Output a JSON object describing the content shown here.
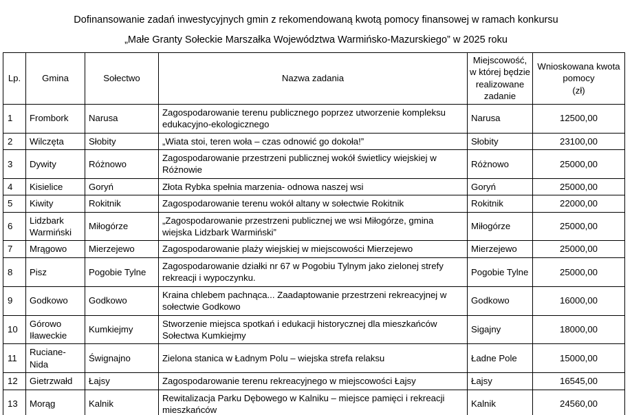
{
  "title": {
    "line1": "Dofinansowanie zadań inwestycyjnych gmin z rekomendowaną kwotą pomocy finansowej w ramach konkursu",
    "line2": "„Małe Granty Sołeckie Marszałka Województwa Warmińsko-Mazurskiego” w 2025 roku"
  },
  "table": {
    "headers": [
      "Lp.",
      "Gmina",
      "Sołectwo",
      "Nazwa zadania",
      "Miejscowość,\nw której będzie\nrealizowane\nzadanie",
      "Wnioskowana kwota\npomocy\n(zł)"
    ],
    "rows": [
      [
        "1",
        "Frombork",
        "Narusa",
        "Zagospodarowanie terenu publicznego poprzez utworzenie kompleksu edukacyjno-ekologicznego",
        "Narusa",
        "12500,00"
      ],
      [
        "2",
        "Wilczęta",
        "Słobity",
        "„Wiata stoi, teren woła – czas odnowić go dokoła!”",
        "Słobity",
        "23100,00"
      ],
      [
        "3",
        "Dywity",
        "Różnowo",
        "Zagospodarowanie przestrzeni publicznej wokół świetlicy wiejskiej w Różnowie",
        "Różnowo",
        "25000,00"
      ],
      [
        "4",
        "Kisielice",
        "Goryń",
        "Złota Rybka spełnia marzenia- odnowa naszej wsi",
        "Goryń",
        "25000,00"
      ],
      [
        "5",
        "Kiwity",
        "Rokitnik",
        "Zagospodarowanie terenu wokół altany w sołectwie Rokitnik",
        "Rokitnik",
        "22000,00"
      ],
      [
        "6",
        "Lidzbark Warmiński",
        "Miłogórze",
        "„Zagospodarowanie przestrzeni publicznej we wsi Miłogórze, gmina wiejska Lidzbark Warmiński”",
        "Miłogórze",
        "25000,00"
      ],
      [
        "7",
        "Mrągowo",
        "Mierzejewo",
        "Zagospodarowanie plaży wiejskiej w miejscowości Mierzejewo",
        "Mierzejewo",
        "25000,00"
      ],
      [
        "8",
        "Pisz",
        "Pogobie Tylne",
        "Zagospodarowanie działki nr 67 w Pogobiu Tylnym jako zielonej strefy rekreacji i wypoczynku.",
        "Pogobie Tylne",
        "25000,00"
      ],
      [
        "9",
        "Godkowo",
        "Godkowo",
        "Kraina chlebem pachnąca... Zaadaptowanie przestrzeni rekreacyjnej w sołectwie Godkowo",
        "Godkowo",
        "16000,00"
      ],
      [
        "10",
        "Górowo Iławeckie",
        "Kumkiejmy",
        "Stworzenie miejsca spotkań i edukacji historycznej dla mieszkańców Sołectwa Kumkiejmy",
        "Sigajny",
        "18000,00"
      ],
      [
        "11",
        "Ruciane-Nida",
        "Śwignajno",
        "Zielona stanica w Ładnym Polu – wiejska strefa relaksu",
        "Ładne Pole",
        "15000,00"
      ],
      [
        "12",
        "Gietrzwałd",
        "Łajsy",
        "Zagospodarowanie terenu rekreacyjnego w miejscowości Łajsy",
        "Łajsy",
        "16545,00"
      ],
      [
        "13",
        "Morąg",
        "Kalnik",
        "Rewitalizacja Parku Dębowego w Kalniku – miejsce pamięci i rekreacji mieszkańców",
        "Kalnik",
        "24560,00"
      ]
    ]
  }
}
